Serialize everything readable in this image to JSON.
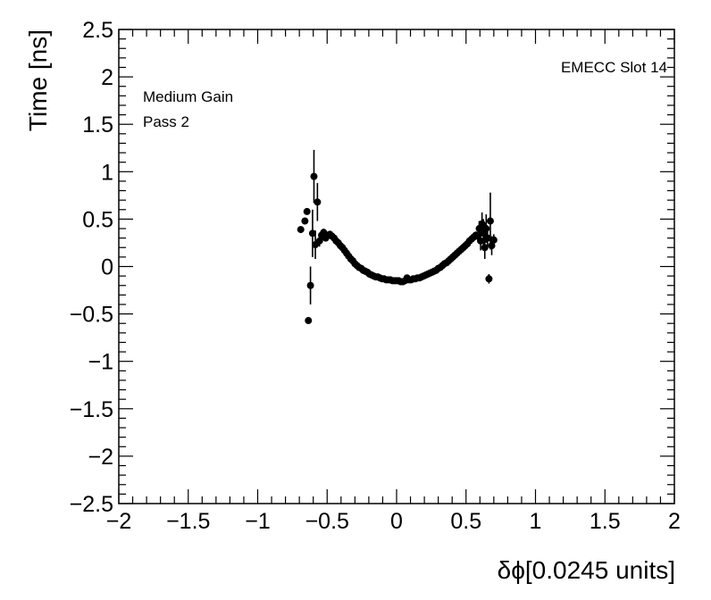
{
  "chart_data": {
    "type": "scatter",
    "xlabel": "δϕ[0.0245 units]",
    "ylabel": "Time [ns]",
    "xlim": [
      -2,
      2
    ],
    "ylim": [
      -2.5,
      2.5
    ],
    "x_ticks": [
      -2,
      -1.5,
      -1,
      -0.5,
      0,
      0.5,
      1,
      1.5,
      2
    ],
    "x_tick_labels": [
      "−2",
      "−1.5",
      "−1",
      "−0.5",
      "0",
      "0.5",
      "1",
      "1.5",
      "2"
    ],
    "y_ticks": [
      2.5,
      2,
      1.5,
      1,
      0.5,
      0,
      -0.5,
      -1,
      -1.5,
      -2,
      -2.5
    ],
    "y_tick_labels": [
      "2.5",
      "2",
      "1.5",
      "1",
      "0.5",
      "0",
      "−0.5",
      "−1",
      "−1.5",
      "−2",
      "−2.5"
    ],
    "grid": false,
    "annotations": {
      "top_right": "EMECC Slot 14",
      "line1": "Medium Gain",
      "line2": "Pass 2"
    },
    "marker_color": "#000000",
    "series": [
      {
        "points": [
          {
            "x": -0.69,
            "y": 0.39,
            "err": 0.02
          },
          {
            "x": -0.66,
            "y": 0.48,
            "err": 0.03
          },
          {
            "x": -0.645,
            "y": 0.58,
            "err": 0.03
          },
          {
            "x": -0.635,
            "y": -0.57,
            "err": 0.03
          },
          {
            "x": -0.62,
            "y": -0.2,
            "err": 0.2
          },
          {
            "x": -0.605,
            "y": 0.35,
            "err": 0.25
          },
          {
            "x": -0.595,
            "y": 0.95,
            "err": 0.28
          },
          {
            "x": -0.585,
            "y": 0.23,
            "err": 0.15
          },
          {
            "x": -0.57,
            "y": 0.68,
            "err": 0.2
          },
          {
            "x": -0.555,
            "y": 0.27,
            "err": 0.06
          },
          {
            "x": -0.54,
            "y": 0.33,
            "err": 0.05
          },
          {
            "x": -0.525,
            "y": 0.36,
            "err": 0.04
          },
          {
            "x": -0.51,
            "y": 0.3,
            "err": 0.03
          },
          {
            "x": -0.495,
            "y": 0.33,
            "err": 0.02
          },
          {
            "x": -0.48,
            "y": 0.34,
            "err": 0.02
          },
          {
            "x": -0.465,
            "y": 0.32,
            "err": 0.02
          },
          {
            "x": -0.45,
            "y": 0.3,
            "err": 0.02
          },
          {
            "x": -0.435,
            "y": 0.27,
            "err": 0.02
          },
          {
            "x": -0.42,
            "y": 0.25,
            "err": 0.02
          },
          {
            "x": -0.405,
            "y": 0.22,
            "err": 0.02
          },
          {
            "x": -0.39,
            "y": 0.2,
            "err": 0.02
          },
          {
            "x": -0.375,
            "y": 0.17,
            "err": 0.02
          },
          {
            "x": -0.36,
            "y": 0.14,
            "err": 0.02
          },
          {
            "x": -0.345,
            "y": 0.11,
            "err": 0.02
          },
          {
            "x": -0.33,
            "y": 0.08,
            "err": 0.02
          },
          {
            "x": -0.315,
            "y": 0.06,
            "err": 0.02
          },
          {
            "x": -0.3,
            "y": 0.03,
            "err": 0.02
          },
          {
            "x": -0.285,
            "y": 0.01,
            "err": 0.02
          },
          {
            "x": -0.27,
            "y": -0.01,
            "err": 0.02
          },
          {
            "x": -0.255,
            "y": -0.02,
            "err": 0.02
          },
          {
            "x": -0.24,
            "y": -0.04,
            "err": 0.02
          },
          {
            "x": -0.225,
            "y": -0.05,
            "err": 0.02
          },
          {
            "x": -0.21,
            "y": -0.06,
            "err": 0.02
          },
          {
            "x": -0.195,
            "y": -0.08,
            "err": 0.02
          },
          {
            "x": -0.18,
            "y": -0.09,
            "err": 0.02
          },
          {
            "x": -0.165,
            "y": -0.1,
            "err": 0.02
          },
          {
            "x": -0.15,
            "y": -0.11,
            "err": 0.02
          },
          {
            "x": -0.135,
            "y": -0.11,
            "err": 0.02
          },
          {
            "x": -0.12,
            "y": -0.12,
            "err": 0.02
          },
          {
            "x": -0.105,
            "y": -0.13,
            "err": 0.02
          },
          {
            "x": -0.09,
            "y": -0.13,
            "err": 0.02
          },
          {
            "x": -0.075,
            "y": -0.14,
            "err": 0.02
          },
          {
            "x": -0.06,
            "y": -0.14,
            "err": 0.02
          },
          {
            "x": -0.045,
            "y": -0.14,
            "err": 0.02
          },
          {
            "x": -0.03,
            "y": -0.15,
            "err": 0.02
          },
          {
            "x": -0.015,
            "y": -0.15,
            "err": 0.02
          },
          {
            "x": 0.0,
            "y": -0.15,
            "err": 0.02
          },
          {
            "x": 0.015,
            "y": -0.15,
            "err": 0.02
          },
          {
            "x": 0.03,
            "y": -0.16,
            "err": 0.02
          },
          {
            "x": 0.045,
            "y": -0.16,
            "err": 0.02
          },
          {
            "x": 0.06,
            "y": -0.15,
            "err": 0.02
          },
          {
            "x": 0.075,
            "y": -0.12,
            "err": 0.02
          },
          {
            "x": 0.09,
            "y": -0.14,
            "err": 0.02
          },
          {
            "x": 0.105,
            "y": -0.14,
            "err": 0.02
          },
          {
            "x": 0.12,
            "y": -0.13,
            "err": 0.02
          },
          {
            "x": 0.135,
            "y": -0.13,
            "err": 0.02
          },
          {
            "x": 0.15,
            "y": -0.12,
            "err": 0.02
          },
          {
            "x": 0.165,
            "y": -0.12,
            "err": 0.02
          },
          {
            "x": 0.18,
            "y": -0.11,
            "err": 0.02
          },
          {
            "x": 0.195,
            "y": -0.1,
            "err": 0.02
          },
          {
            "x": 0.21,
            "y": -0.09,
            "err": 0.02
          },
          {
            "x": 0.225,
            "y": -0.08,
            "err": 0.02
          },
          {
            "x": 0.24,
            "y": -0.07,
            "err": 0.02
          },
          {
            "x": 0.255,
            "y": -0.06,
            "err": 0.02
          },
          {
            "x": 0.27,
            "y": -0.05,
            "err": 0.02
          },
          {
            "x": 0.285,
            "y": -0.04,
            "err": 0.02
          },
          {
            "x": 0.3,
            "y": -0.02,
            "err": 0.02
          },
          {
            "x": 0.315,
            "y": -0.01,
            "err": 0.02
          },
          {
            "x": 0.33,
            "y": 0.01,
            "err": 0.02
          },
          {
            "x": 0.345,
            "y": 0.03,
            "err": 0.02
          },
          {
            "x": 0.36,
            "y": 0.04,
            "err": 0.02
          },
          {
            "x": 0.375,
            "y": 0.06,
            "err": 0.02
          },
          {
            "x": 0.39,
            "y": 0.08,
            "err": 0.02
          },
          {
            "x": 0.405,
            "y": 0.1,
            "err": 0.02
          },
          {
            "x": 0.42,
            "y": 0.12,
            "err": 0.02
          },
          {
            "x": 0.435,
            "y": 0.14,
            "err": 0.02
          },
          {
            "x": 0.45,
            "y": 0.16,
            "err": 0.02
          },
          {
            "x": 0.465,
            "y": 0.18,
            "err": 0.02
          },
          {
            "x": 0.48,
            "y": 0.2,
            "err": 0.02
          },
          {
            "x": 0.495,
            "y": 0.22,
            "err": 0.02
          },
          {
            "x": 0.51,
            "y": 0.24,
            "err": 0.02
          },
          {
            "x": 0.525,
            "y": 0.27,
            "err": 0.02
          },
          {
            "x": 0.54,
            "y": 0.29,
            "err": 0.03
          },
          {
            "x": 0.555,
            "y": 0.31,
            "err": 0.03
          },
          {
            "x": 0.57,
            "y": 0.33,
            "err": 0.04
          },
          {
            "x": 0.585,
            "y": 0.32,
            "err": 0.05
          },
          {
            "x": 0.595,
            "y": 0.4,
            "err": 0.08
          },
          {
            "x": 0.605,
            "y": 0.27,
            "err": 0.1
          },
          {
            "x": 0.615,
            "y": 0.45,
            "err": 0.12
          },
          {
            "x": 0.625,
            "y": 0.35,
            "err": 0.15
          },
          {
            "x": 0.635,
            "y": 0.2,
            "err": 0.12
          },
          {
            "x": 0.645,
            "y": 0.4,
            "err": 0.15
          },
          {
            "x": 0.655,
            "y": 0.3,
            "err": 0.1
          },
          {
            "x": 0.665,
            "y": -0.13,
            "err": 0.05
          },
          {
            "x": 0.675,
            "y": 0.48,
            "err": 0.3
          },
          {
            "x": 0.685,
            "y": 0.22,
            "err": 0.1
          },
          {
            "x": 0.7,
            "y": 0.28,
            "err": 0.06
          }
        ]
      }
    ]
  }
}
